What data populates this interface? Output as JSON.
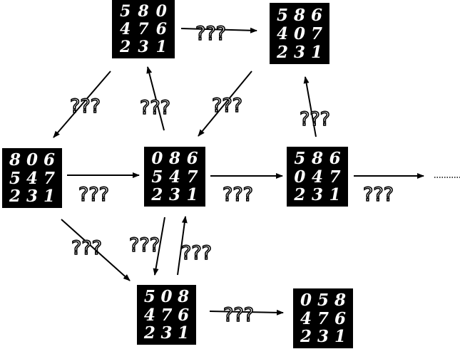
{
  "unknown_label": "???",
  "grids": [
    {
      "id": "g1",
      "rows": [
        [
          "5",
          "8",
          "0"
        ],
        [
          "4",
          "7",
          "6"
        ],
        [
          "2",
          "3",
          "1"
        ]
      ]
    },
    {
      "id": "g2",
      "rows": [
        [
          "5",
          "8",
          "6"
        ],
        [
          "4",
          "0",
          "7"
        ],
        [
          "2",
          "3",
          "1"
        ]
      ]
    },
    {
      "id": "g3",
      "rows": [
        [
          "8",
          "0",
          "6"
        ],
        [
          "5",
          "4",
          "7"
        ],
        [
          "2",
          "3",
          "1"
        ]
      ]
    },
    {
      "id": "g4",
      "rows": [
        [
          "0",
          "8",
          "6"
        ],
        [
          "5",
          "4",
          "7"
        ],
        [
          "2",
          "3",
          "1"
        ]
      ]
    },
    {
      "id": "g5",
      "rows": [
        [
          "5",
          "8",
          "6"
        ],
        [
          "0",
          "4",
          "7"
        ],
        [
          "2",
          "3",
          "1"
        ]
      ]
    },
    {
      "id": "g6",
      "rows": [
        [
          "5",
          "0",
          "8"
        ],
        [
          "4",
          "7",
          "6"
        ],
        [
          "2",
          "3",
          "1"
        ]
      ]
    },
    {
      "id": "g7",
      "rows": [
        [
          "0",
          "5",
          "8"
        ],
        [
          "4",
          "7",
          "6"
        ],
        [
          "2",
          "3",
          "1"
        ]
      ]
    }
  ]
}
